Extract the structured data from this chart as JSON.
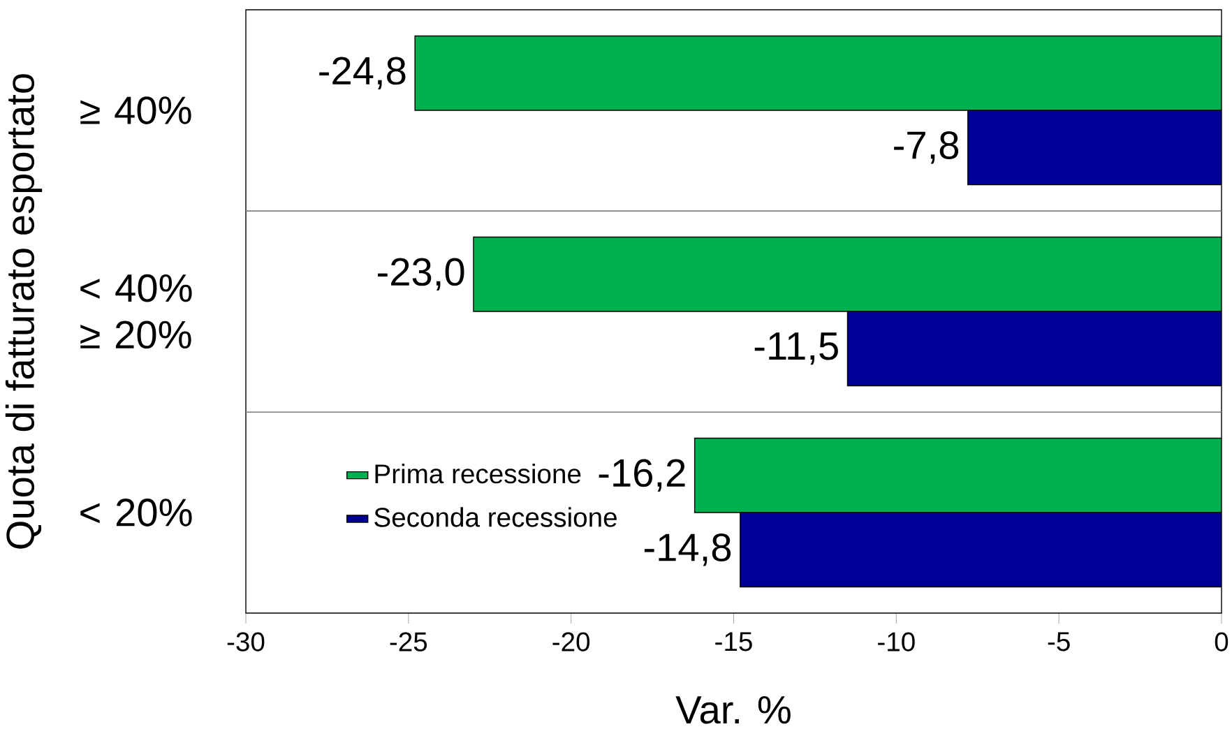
{
  "chart_data": {
    "type": "bar",
    "orientation": "horizontal",
    "xlabel": "Var. %",
    "ylabel": "Quota di fatturato esportato",
    "categories": [
      "≥ 40%",
      "< 40% ≥ 20%",
      "< 20%"
    ],
    "series": [
      {
        "name": "Prima recessione",
        "color": "#00b050",
        "values": [
          -24.8,
          -23.0,
          -16.2
        ],
        "value_labels": [
          "-24,8",
          "-23,0",
          "-16,2"
        ]
      },
      {
        "name": "Seconda recessione",
        "color": "#000099",
        "values": [
          -7.8,
          -11.5,
          -14.8
        ],
        "value_labels": [
          "-7,8",
          "-11,5",
          "-14,8"
        ]
      }
    ],
    "xlim": [
      -30,
      0
    ],
    "xticks": [
      -30,
      -25,
      -20,
      -15,
      -10,
      -5,
      0
    ],
    "legend": "bottom left"
  }
}
